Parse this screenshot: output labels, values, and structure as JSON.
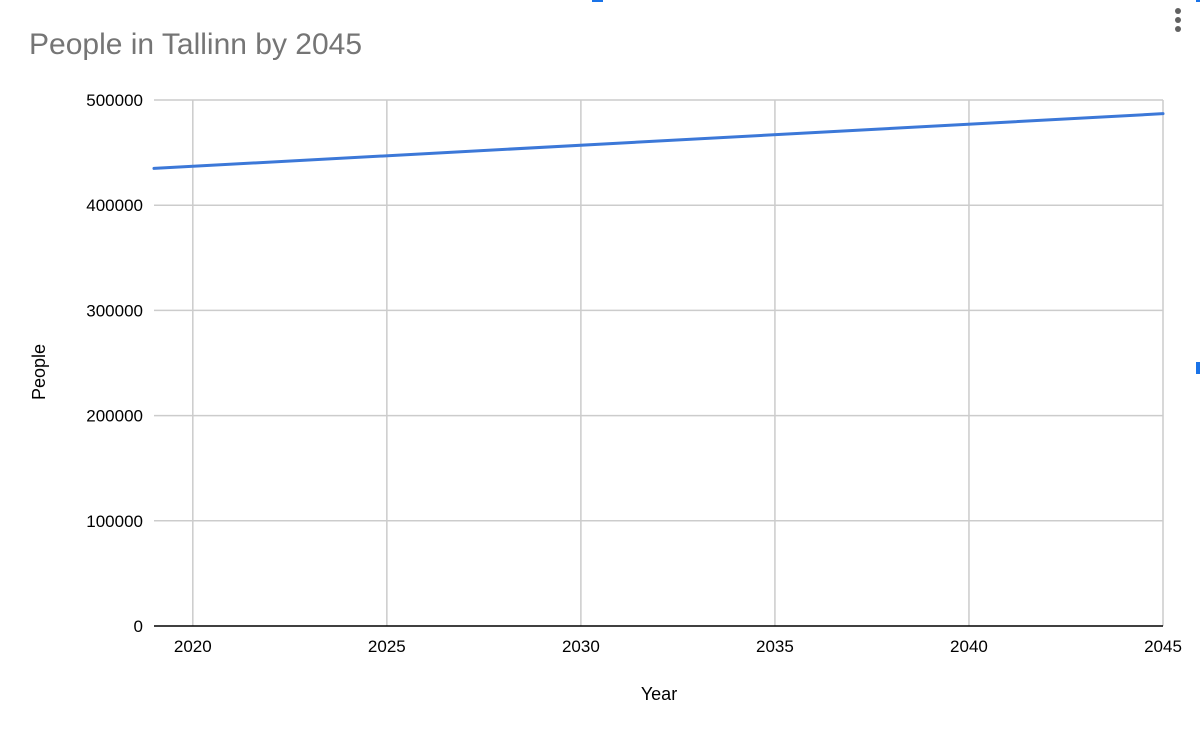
{
  "chart_data": {
    "type": "line",
    "title": "People in Tallinn by 2045",
    "xlabel": "Year",
    "ylabel": "People",
    "xlim": [
      2019,
      2045
    ],
    "ylim": [
      0,
      500000
    ],
    "x_ticks": [
      2020,
      2025,
      2030,
      2035,
      2040,
      2045
    ],
    "y_ticks": [
      0,
      100000,
      200000,
      300000,
      400000,
      500000
    ],
    "grid": true,
    "legend": "none",
    "series": [
      {
        "color": "#3c78d8",
        "x": [
          2019,
          2045
        ],
        "y": [
          435000,
          487000
        ]
      }
    ]
  },
  "colors": {
    "line": "#3c78d8",
    "grid": "#cccccc",
    "axis": "#000000",
    "title": "#757575",
    "accent": "#1a73e8"
  },
  "icons": {
    "menu": "more-vert-icon"
  }
}
